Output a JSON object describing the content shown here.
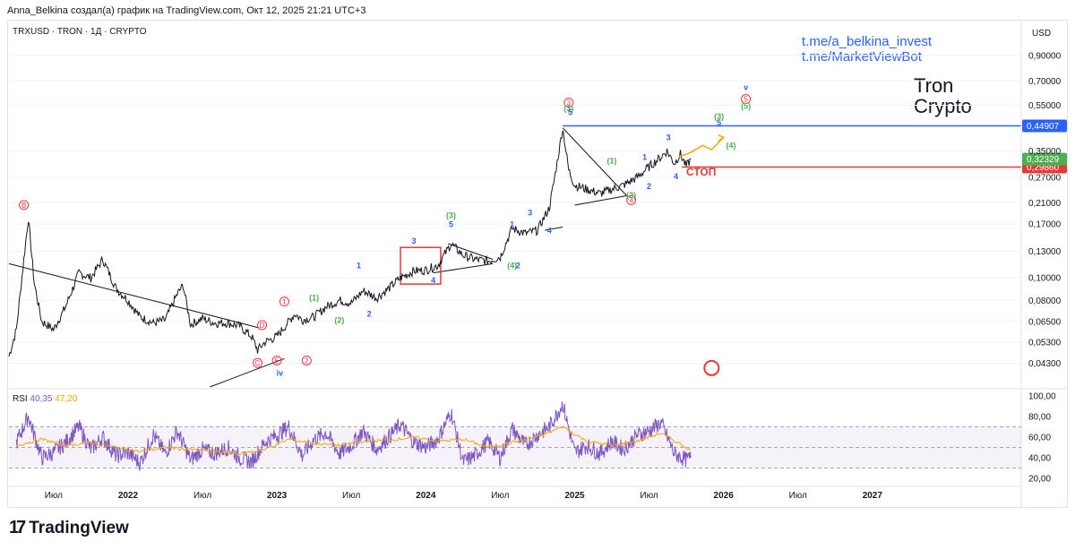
{
  "header": {
    "caption": "Anna_Belkina создал(а) график на TradingView.com, Окт 12, 2025 21:21 UTC+3",
    "symbol": "TRXUSD · TRON · 1Д · CRYPTO"
  },
  "links": [
    "t.me/a_belkina_invest",
    "t.me/MarketViewBot"
  ],
  "brand": [
    "Tron",
    "Crypto"
  ],
  "footer": {
    "logo_glyph": "17",
    "logo_name": "TradingView"
  },
  "rsi_legend": {
    "label": "RSI",
    "value1": "40,35",
    "value2": "47,20"
  },
  "colors": {
    "price": "#131722",
    "blue_level": "#2962ff",
    "red_level": "#e53935",
    "rsi": "#7e57c2",
    "rsi_ma": "#f7a600",
    "green_badge": "#4caf50",
    "red_badge": "#f23645",
    "forecast": "#f7a600"
  },
  "chart_data": [
    {
      "type": "line",
      "title": "TRXUSD · TRON · 1Д · CRYPTO",
      "yscale": "log",
      "ylim": [
        0.034,
        1.0
      ],
      "y_unit": "USD",
      "y_ticks": [
        0.9,
        0.7,
        0.55,
        0.35,
        0.27,
        0.21,
        0.17,
        0.13,
        0.1,
        0.08,
        0.065,
        0.053,
        0.043
      ],
      "y_tick_labels": [
        "0,90000",
        "0,70000",
        "0,55000",
        "0,35000",
        "0,27000",
        "0,21000",
        "0,17000",
        "0,13000",
        "0,10000",
        "0,08000",
        "0,06500",
        "0,05300",
        "0,04300"
      ],
      "xlim": [
        2021.2,
        2028.0
      ],
      "x_ticks": [
        2021.5,
        2022.0,
        2022.5,
        2023.0,
        2023.5,
        2024.0,
        2024.5,
        2025.0,
        2025.5,
        2026.0,
        2026.5,
        2027.0
      ],
      "x_tick_labels": [
        "Июл",
        "2022",
        "Июл",
        "2023",
        "Июл",
        "2024",
        "Июл",
        "2025",
        "Июл",
        "2026",
        "Июл",
        "2027"
      ],
      "series": [
        {
          "name": "TRXUSD",
          "points": [
            [
              2021.2,
              0.046
            ],
            [
              2021.25,
              0.06
            ],
            [
              2021.3,
              0.12
            ],
            [
              2021.33,
              0.18
            ],
            [
              2021.37,
              0.095
            ],
            [
              2021.42,
              0.065
            ],
            [
              2021.5,
              0.06
            ],
            [
              2021.58,
              0.075
            ],
            [
              2021.67,
              0.105
            ],
            [
              2021.75,
              0.1
            ],
            [
              2021.83,
              0.12
            ],
            [
              2021.92,
              0.09
            ],
            [
              2022.0,
              0.08
            ],
            [
              2022.08,
              0.068
            ],
            [
              2022.17,
              0.064
            ],
            [
              2022.25,
              0.066
            ],
            [
              2022.33,
              0.085
            ],
            [
              2022.37,
              0.093
            ],
            [
              2022.42,
              0.063
            ],
            [
              2022.5,
              0.067
            ],
            [
              2022.58,
              0.064
            ],
            [
              2022.67,
              0.064
            ],
            [
              2022.75,
              0.062
            ],
            [
              2022.83,
              0.056
            ],
            [
              2022.87,
              0.049
            ],
            [
              2022.92,
              0.053
            ],
            [
              2023.0,
              0.056
            ],
            [
              2023.08,
              0.065
            ],
            [
              2023.12,
              0.07
            ],
            [
              2023.17,
              0.066
            ],
            [
              2023.25,
              0.068
            ],
            [
              2023.33,
              0.075
            ],
            [
              2023.42,
              0.08
            ],
            [
              2023.5,
              0.078
            ],
            [
              2023.58,
              0.088
            ],
            [
              2023.67,
              0.082
            ],
            [
              2023.75,
              0.09
            ],
            [
              2023.83,
              0.1
            ],
            [
              2023.92,
              0.107
            ],
            [
              2024.0,
              0.108
            ],
            [
              2024.08,
              0.113
            ],
            [
              2024.17,
              0.14
            ],
            [
              2024.25,
              0.125
            ],
            [
              2024.33,
              0.12
            ],
            [
              2024.42,
              0.118
            ],
            [
              2024.5,
              0.123
            ],
            [
              2024.58,
              0.163
            ],
            [
              2024.67,
              0.155
            ],
            [
              2024.75,
              0.16
            ],
            [
              2024.83,
              0.2
            ],
            [
              2024.87,
              0.28
            ],
            [
              2024.92,
              0.44
            ],
            [
              2024.96,
              0.29
            ],
            [
              2025.0,
              0.25
            ],
            [
              2025.08,
              0.24
            ],
            [
              2025.17,
              0.23
            ],
            [
              2025.25,
              0.24
            ],
            [
              2025.33,
              0.25
            ],
            [
              2025.42,
              0.27
            ],
            [
              2025.5,
              0.3
            ],
            [
              2025.58,
              0.33
            ],
            [
              2025.62,
              0.35
            ],
            [
              2025.67,
              0.31
            ],
            [
              2025.71,
              0.34
            ],
            [
              2025.75,
              0.3
            ],
            [
              2025.78,
              0.323
            ]
          ]
        },
        {
          "name": "Forecast",
          "points": [
            [
              2025.7,
              0.33
            ],
            [
              2025.78,
              0.345
            ],
            [
              2025.86,
              0.37
            ],
            [
              2025.92,
              0.355
            ],
            [
              2026.0,
              0.4
            ]
          ]
        }
      ],
      "levels": [
        {
          "name": "resistance",
          "value": 0.44907,
          "label": "0,44907",
          "color": "#2962ff"
        },
        {
          "name": "stop",
          "value": 0.2986,
          "label": "0,29860",
          "color": "#e53935"
        },
        {
          "name": "last",
          "value": 0.32329,
          "label": "0,32329",
          "color": "#4caf50"
        }
      ],
      "annotations": [
        {
          "text": "СТОП",
          "x": 2025.85,
          "y": 0.275,
          "color": "red"
        },
        {
          "text": "v",
          "x": 2026.15,
          "y": 0.64,
          "color": "blue"
        },
        {
          "text": "iv",
          "x": 2023.02,
          "y": 0.038,
          "color": "blue"
        },
        {
          "text": "B",
          "x": 2021.3,
          "y": 0.2,
          "color": "red_circle"
        },
        {
          "text": "D",
          "x": 2022.9,
          "y": 0.061,
          "color": "red_circle"
        },
        {
          "text": "C",
          "x": 2022.87,
          "y": 0.042,
          "color": "red_circle"
        },
        {
          "text": "E",
          "x": 2023.0,
          "y": 0.043,
          "color": "red_circle"
        },
        {
          "text": "1",
          "x": 2023.05,
          "y": 0.077,
          "color": "red_circle"
        },
        {
          "text": "2",
          "x": 2023.2,
          "y": 0.043,
          "color": "red_circle"
        },
        {
          "text": "3",
          "x": 2024.96,
          "y": 0.55,
          "color": "red_circle"
        },
        {
          "text": "4",
          "x": 2025.38,
          "y": 0.21,
          "color": "red_circle"
        },
        {
          "text": "5",
          "x": 2026.15,
          "y": 0.57,
          "color": "red_circle"
        },
        {
          "text": "(1)",
          "x": 2023.25,
          "y": 0.08,
          "color": "green"
        },
        {
          "text": "(2)",
          "x": 2023.42,
          "y": 0.064,
          "color": "green"
        },
        {
          "text": "(3)",
          "x": 2024.17,
          "y": 0.18,
          "color": "green"
        },
        {
          "text": "(4)",
          "x": 2024.58,
          "y": 0.11,
          "color": "green"
        },
        {
          "text": "(3)",
          "x": 2024.96,
          "y": 0.52,
          "color": "green"
        },
        {
          "text": "(1)",
          "x": 2025.25,
          "y": 0.31,
          "color": "green"
        },
        {
          "text": "(2)",
          "x": 2025.38,
          "y": 0.22,
          "color": "green"
        },
        {
          "text": "(3)",
          "x": 2025.97,
          "y": 0.48,
          "color": "green"
        },
        {
          "text": "(4)",
          "x": 2026.05,
          "y": 0.36,
          "color": "green"
        },
        {
          "text": "(5)",
          "x": 2026.15,
          "y": 0.53,
          "color": "green"
        },
        {
          "text": "1",
          "x": 2023.55,
          "y": 0.11,
          "color": "blue"
        },
        {
          "text": "2",
          "x": 2023.62,
          "y": 0.068,
          "color": "blue"
        },
        {
          "text": "3",
          "x": 2023.92,
          "y": 0.14,
          "color": "blue"
        },
        {
          "text": "4",
          "x": 2024.05,
          "y": 0.095,
          "color": "blue"
        },
        {
          "text": "5",
          "x": 2024.17,
          "y": 0.165,
          "color": "blue"
        },
        {
          "text": "1",
          "x": 2024.58,
          "y": 0.165,
          "color": "blue"
        },
        {
          "text": "2",
          "x": 2024.62,
          "y": 0.11,
          "color": "blue"
        },
        {
          "text": "3",
          "x": 2024.7,
          "y": 0.185,
          "color": "blue"
        },
        {
          "text": "4",
          "x": 2024.83,
          "y": 0.155,
          "color": "blue"
        },
        {
          "text": "5",
          "x": 2024.97,
          "y": 0.5,
          "color": "blue"
        },
        {
          "text": "1",
          "x": 2025.47,
          "y": 0.32,
          "color": "blue"
        },
        {
          "text": "2",
          "x": 2025.5,
          "y": 0.24,
          "color": "blue"
        },
        {
          "text": "3",
          "x": 2025.63,
          "y": 0.39,
          "color": "blue"
        },
        {
          "text": "4",
          "x": 2025.68,
          "y": 0.265,
          "color": "blue"
        },
        {
          "text": "5",
          "x": 2025.97,
          "y": 0.45,
          "color": "blue"
        }
      ]
    },
    {
      "type": "line",
      "title": "RSI",
      "ylim": [
        15,
        105
      ],
      "y_ticks": [
        100,
        80,
        60,
        40,
        20
      ],
      "y_tick_labels": [
        "100,00",
        "80,00",
        "60,00",
        "40,00",
        "20,00"
      ],
      "band": [
        30,
        70
      ],
      "midline": 50,
      "series": [
        {
          "name": "RSI",
          "points": [
            [
              2021.25,
              55
            ],
            [
              2021.33,
              80
            ],
            [
              2021.42,
              40
            ],
            [
              2021.5,
              45
            ],
            [
              2021.58,
              55
            ],
            [
              2021.67,
              70
            ],
            [
              2021.75,
              48
            ],
            [
              2021.83,
              60
            ],
            [
              2021.92,
              42
            ],
            [
              2022.0,
              45
            ],
            [
              2022.08,
              35
            ],
            [
              2022.17,
              62
            ],
            [
              2022.25,
              44
            ],
            [
              2022.33,
              66
            ],
            [
              2022.42,
              38
            ],
            [
              2022.5,
              48
            ],
            [
              2022.58,
              44
            ],
            [
              2022.67,
              50
            ],
            [
              2022.75,
              40
            ],
            [
              2022.83,
              36
            ],
            [
              2022.92,
              55
            ],
            [
              2023.0,
              62
            ],
            [
              2023.08,
              70
            ],
            [
              2023.17,
              42
            ],
            [
              2023.25,
              58
            ],
            [
              2023.33,
              64
            ],
            [
              2023.42,
              44
            ],
            [
              2023.5,
              52
            ],
            [
              2023.58,
              66
            ],
            [
              2023.67,
              48
            ],
            [
              2023.75,
              60
            ],
            [
              2023.83,
              72
            ],
            [
              2023.92,
              55
            ],
            [
              2024.0,
              50
            ],
            [
              2024.08,
              58
            ],
            [
              2024.17,
              84
            ],
            [
              2024.25,
              36
            ],
            [
              2024.33,
              42
            ],
            [
              2024.42,
              56
            ],
            [
              2024.5,
              40
            ],
            [
              2024.58,
              68
            ],
            [
              2024.67,
              52
            ],
            [
              2024.75,
              62
            ],
            [
              2024.83,
              70
            ],
            [
              2024.92,
              92
            ],
            [
              2025.0,
              45
            ],
            [
              2025.08,
              52
            ],
            [
              2025.17,
              44
            ],
            [
              2025.25,
              56
            ],
            [
              2025.33,
              48
            ],
            [
              2025.42,
              62
            ],
            [
              2025.5,
              66
            ],
            [
              2025.58,
              74
            ],
            [
              2025.67,
              44
            ],
            [
              2025.75,
              38
            ],
            [
              2025.78,
              40
            ]
          ]
        },
        {
          "name": "RSI MA",
          "points": [
            [
              2021.25,
              52
            ],
            [
              2021.42,
              58
            ],
            [
              2021.58,
              52
            ],
            [
              2021.75,
              55
            ],
            [
              2021.92,
              50
            ],
            [
              2022.08,
              46
            ],
            [
              2022.25,
              50
            ],
            [
              2022.42,
              48
            ],
            [
              2022.58,
              46
            ],
            [
              2022.75,
              44
            ],
            [
              2022.92,
              48
            ],
            [
              2023.08,
              58
            ],
            [
              2023.25,
              54
            ],
            [
              2023.42,
              52
            ],
            [
              2023.58,
              56
            ],
            [
              2023.75,
              57
            ],
            [
              2023.92,
              60
            ],
            [
              2024.08,
              56
            ],
            [
              2024.25,
              58
            ],
            [
              2024.42,
              50
            ],
            [
              2024.58,
              55
            ],
            [
              2024.75,
              60
            ],
            [
              2024.92,
              70
            ],
            [
              2025.08,
              56
            ],
            [
              2025.25,
              52
            ],
            [
              2025.42,
              56
            ],
            [
              2025.58,
              64
            ],
            [
              2025.75,
              50
            ],
            [
              2025.78,
              47.2
            ]
          ]
        }
      ]
    }
  ]
}
